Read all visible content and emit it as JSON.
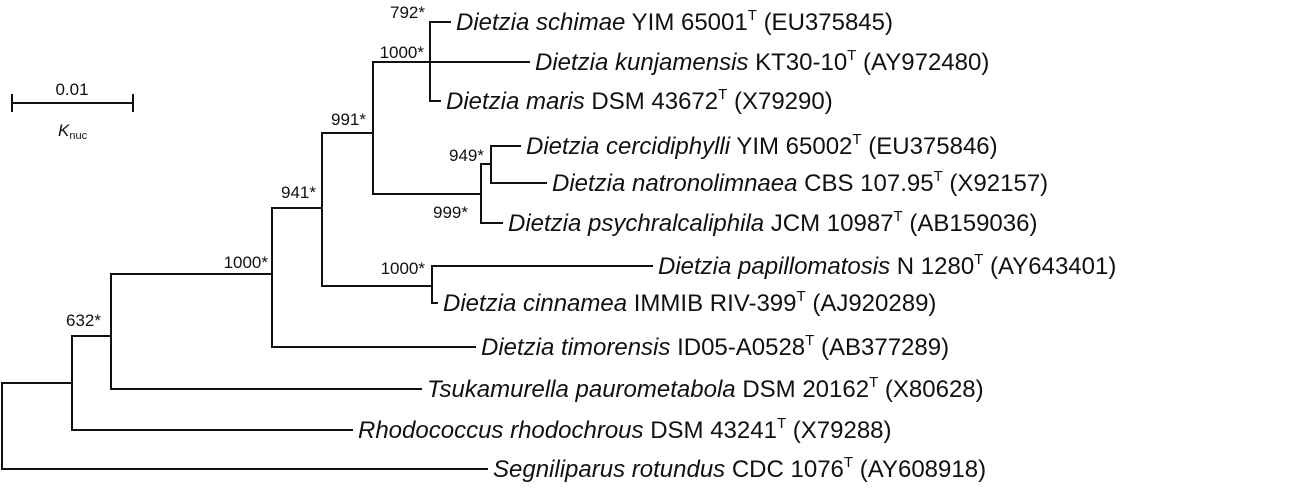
{
  "scale_bar": {
    "value": "0.01",
    "unit_symbol": "K",
    "unit_subscript": "nuc"
  },
  "bootstrap_values": [
    "792*",
    "1000*",
    "991*",
    "949*",
    "999*",
    "941*",
    "1000*",
    "1000*",
    "632*"
  ],
  "taxa": [
    {
      "genus": "Dietzia",
      "species": "schimae",
      "strain": "YIM 65001",
      "type_mark": "T",
      "accession": "(EU375845)"
    },
    {
      "genus": "Dietzia",
      "species": "kunjamensis",
      "strain": "KT30-10",
      "type_mark": "T",
      "accession": "(AY972480)"
    },
    {
      "genus": "Dietzia",
      "species": "maris",
      "strain": "DSM 43672",
      "type_mark": "T",
      "accession": "(X79290)"
    },
    {
      "genus": "Dietzia",
      "species": "cercidiphylli",
      "strain": "YIM 65002",
      "type_mark": "T",
      "accession": "(EU375846)"
    },
    {
      "genus": "Dietzia",
      "species": "natronolimnaea",
      "strain": "CBS 107.95",
      "type_mark": "T",
      "accession": "(X92157)"
    },
    {
      "genus": "Dietzia",
      "species": "psychralcaliphila",
      "strain": "JCM 10987",
      "type_mark": "T",
      "accession": "(AB159036)"
    },
    {
      "genus": "Dietzia",
      "species": "papillomatosis",
      "strain": "N 1280",
      "type_mark": "T",
      "accession": "(AY643401)"
    },
    {
      "genus": "Dietzia",
      "species": "cinnamea",
      "strain": "IMMIB RIV-399",
      "type_mark": "T",
      "accession": "(AJ920289)"
    },
    {
      "genus": "Dietzia",
      "species": "timorensis",
      "strain": "ID05-A0528",
      "type_mark": "T",
      "accession": "(AB377289)"
    },
    {
      "genus": "Tsukamurella",
      "species": "paurometabola",
      "strain": "DSM 20162",
      "type_mark": "T",
      "accession": "(X80628)"
    },
    {
      "genus": "Rhodococcus",
      "species": "rhodochrous",
      "strain": "DSM 43241",
      "type_mark": "T",
      "accession": "(X79288)"
    },
    {
      "genus": "Segniliparus",
      "species": "rotundus",
      "strain": "CDC 1076",
      "type_mark": "T",
      "accession": "(AY608918)"
    }
  ]
}
